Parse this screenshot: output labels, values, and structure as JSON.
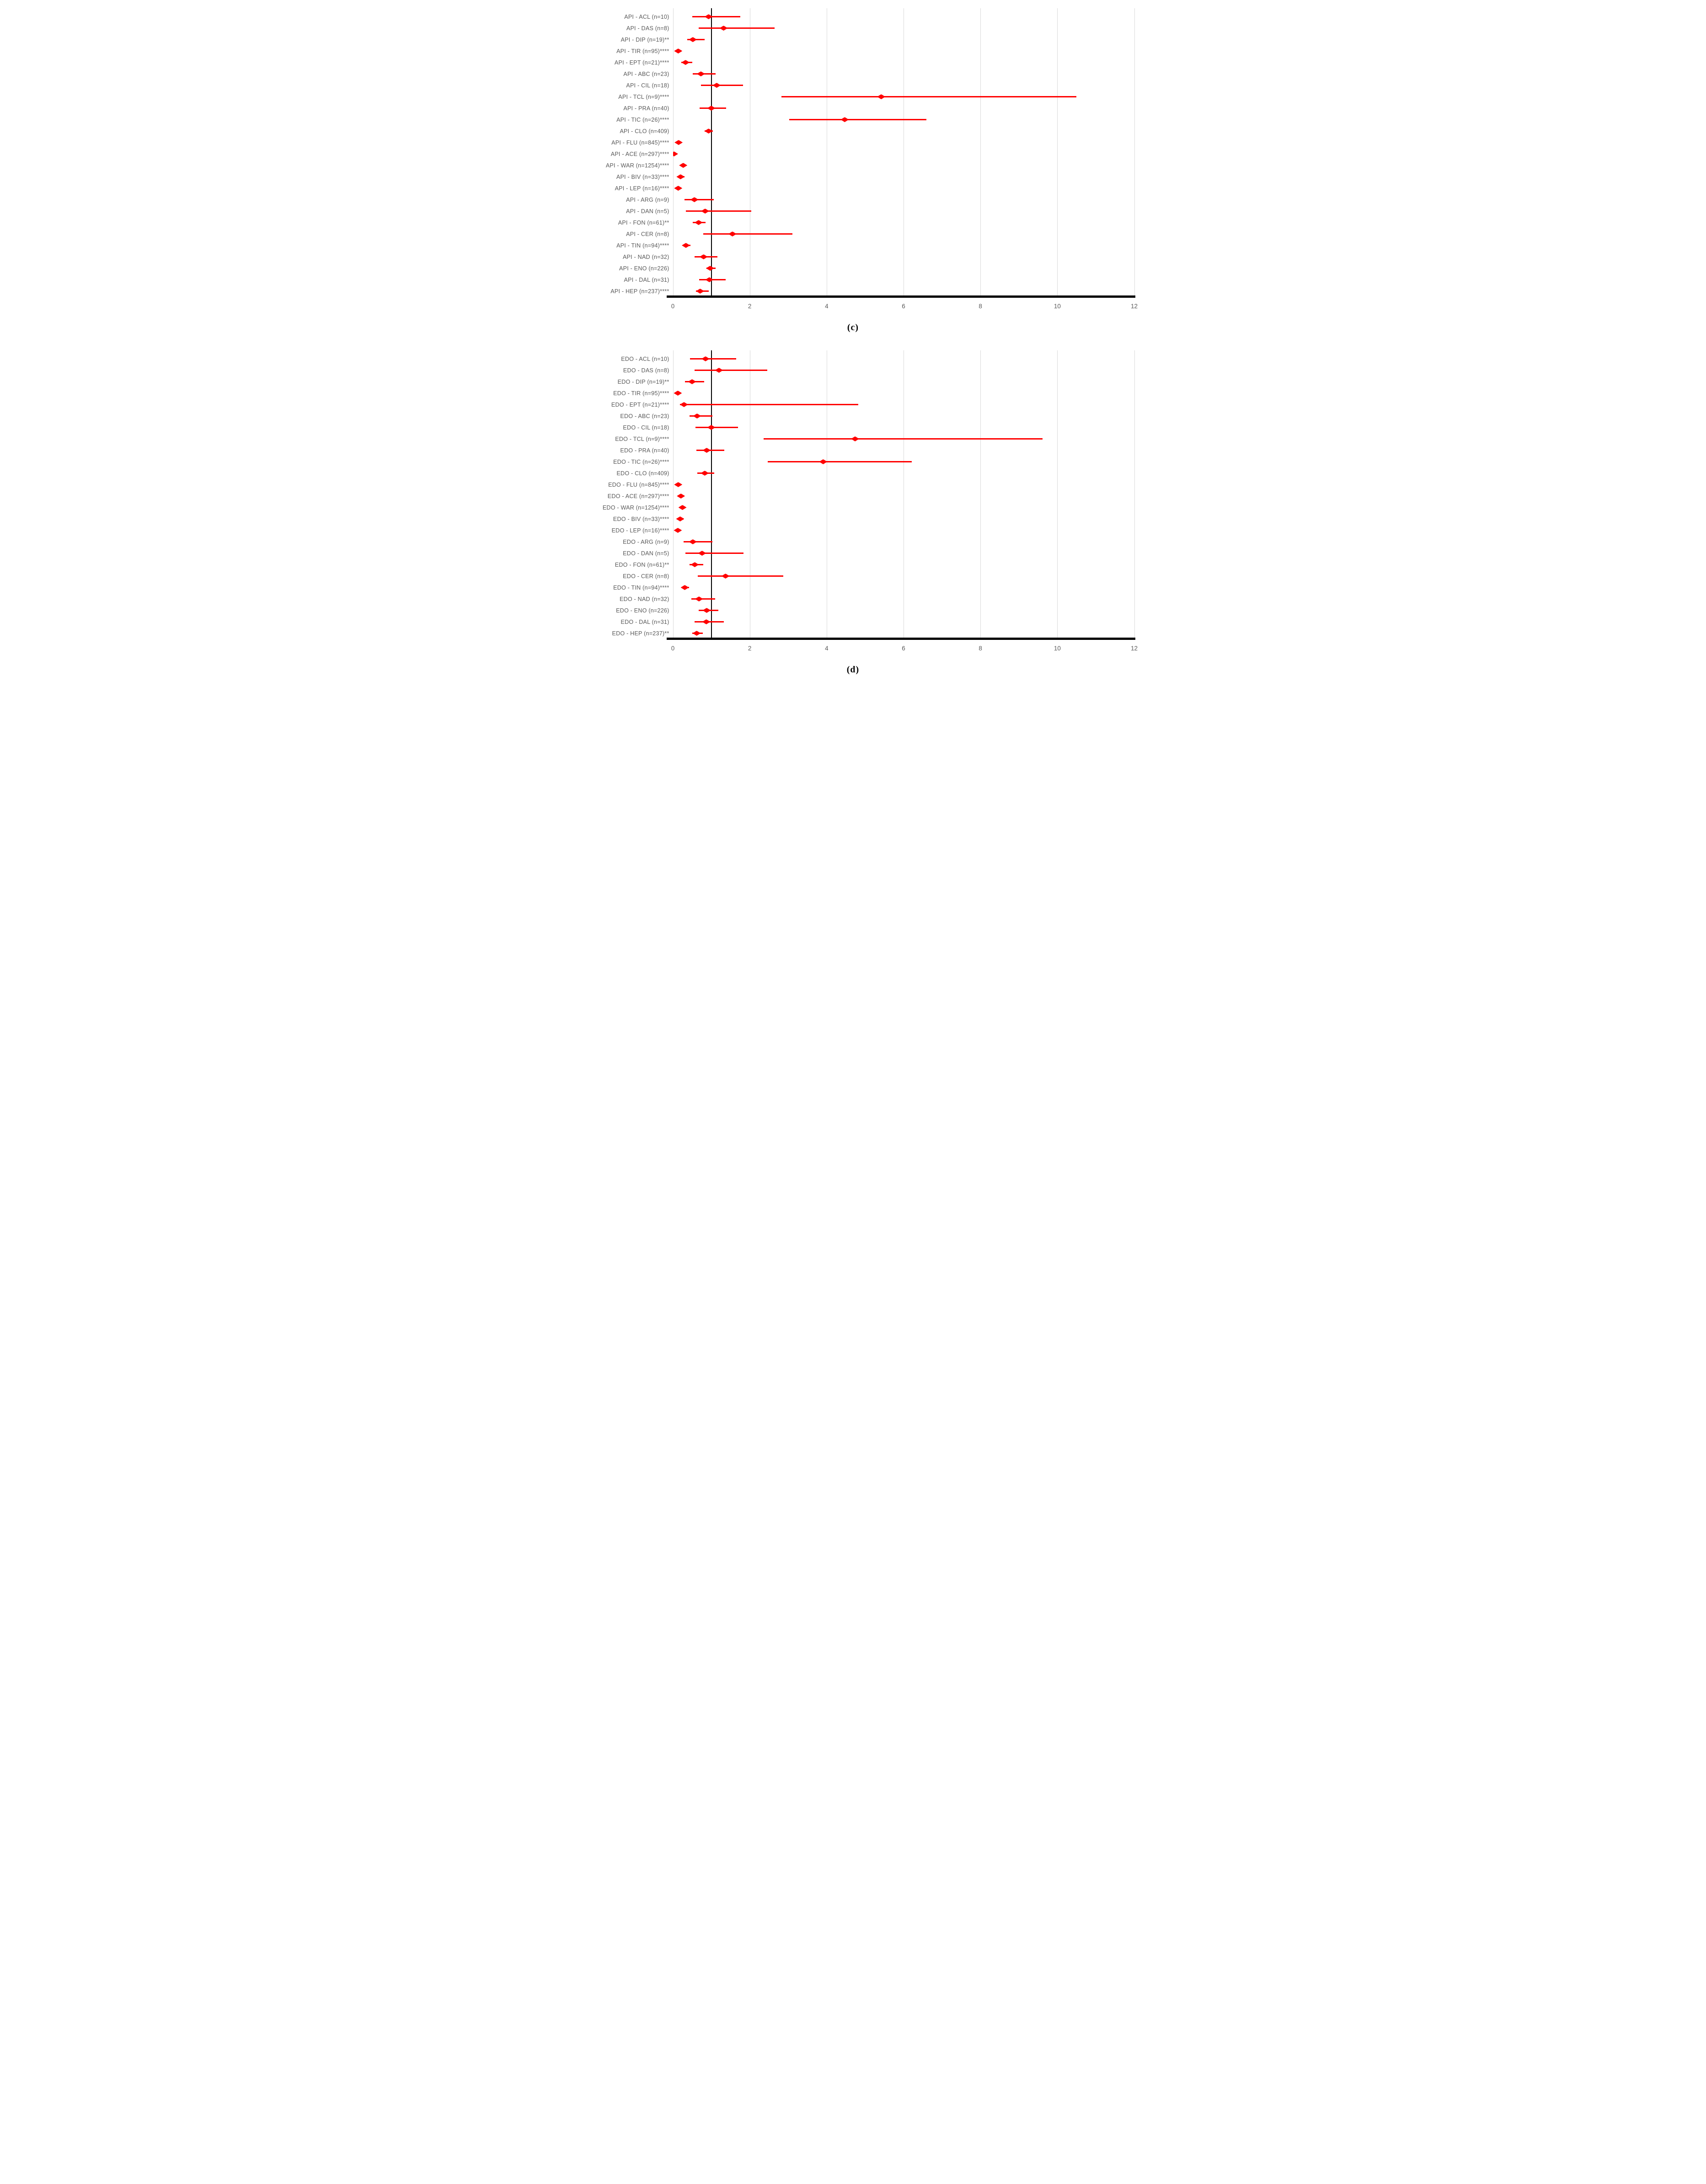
{
  "styles": {
    "marker_color": "#FF0000",
    "text_color": "#595959",
    "gridline_color": "#D9D9D9",
    "reference_line_color": "#000000",
    "axis_color": "#000000",
    "background": "#FFFFFF"
  },
  "chart_data": [
    {
      "id": "c",
      "type": "scatter",
      "variant": "forest-plot",
      "caption": "(c)",
      "legend": "none",
      "x_axis": {
        "min": 0,
        "max": 12,
        "ticks": [
          0,
          2,
          4,
          6,
          8,
          10,
          12
        ],
        "gridlines": true
      },
      "reference_line_x": 1,
      "rows": [
        {
          "label": "API - ACL (n=10)",
          "value": 0.93,
          "lo": 0.5,
          "hi": 1.75
        },
        {
          "label": "API - DAS (n=8)",
          "value": 1.32,
          "lo": 0.67,
          "hi": 2.65
        },
        {
          "label": "API - DIP (n=19)**",
          "value": 0.52,
          "lo": 0.37,
          "hi": 0.83
        },
        {
          "label": "API - TIR (n=95)****",
          "value": 0.14,
          "lo": 0.09,
          "hi": 0.2
        },
        {
          "label": "API - EPT (n=21)****",
          "value": 0.33,
          "lo": 0.22,
          "hi": 0.5
        },
        {
          "label": "API - ABC (n=23)",
          "value": 0.73,
          "lo": 0.52,
          "hi": 1.11
        },
        {
          "label": "API - CIL (n=18)",
          "value": 1.14,
          "lo": 0.73,
          "hi": 1.83
        },
        {
          "label": "API - TCL (n=9)****",
          "value": 5.42,
          "lo": 2.82,
          "hi": 10.5
        },
        {
          "label": "API - PRA (n=40)",
          "value": 1.0,
          "lo": 0.7,
          "hi": 1.39
        },
        {
          "label": "API - TIC (n=26)****",
          "value": 4.47,
          "lo": 3.03,
          "hi": 6.6
        },
        {
          "label": "API - CLO (n=409)",
          "value": 0.93,
          "lo": 0.83,
          "hi": 1.04
        },
        {
          "label": "API - FLU (n=845)****",
          "value": 0.15,
          "lo": 0.1,
          "hi": 0.21
        },
        {
          "label": "API - ACE (n=297)****",
          "value": 0.03,
          "lo": 0.02,
          "hi": 0.1
        },
        {
          "label": "API - WAR (n=1254)****",
          "value": 0.27,
          "lo": 0.21,
          "hi": 0.35
        },
        {
          "label": "API - BIV (n=33)****",
          "value": 0.2,
          "lo": 0.13,
          "hi": 0.3
        },
        {
          "label": "API - LEP (n=16)****",
          "value": 0.14,
          "lo": 0.08,
          "hi": 0.22
        },
        {
          "label": "API - ARG (n=9)",
          "value": 0.56,
          "lo": 0.3,
          "hi": 1.07
        },
        {
          "label": "API - DAN (n=5)",
          "value": 0.84,
          "lo": 0.34,
          "hi": 2.04
        },
        {
          "label": "API - FON (n=61)**",
          "value": 0.67,
          "lo": 0.52,
          "hi": 0.85
        },
        {
          "label": "API - CER (n=8)",
          "value": 1.55,
          "lo": 0.79,
          "hi": 3.11
        },
        {
          "label": "API - TIN (n=94)****",
          "value": 0.34,
          "lo": 0.26,
          "hi": 0.46
        },
        {
          "label": "API - NAD (n=32)",
          "value": 0.8,
          "lo": 0.56,
          "hi": 1.16
        },
        {
          "label": "API - ENO (n=226)",
          "value": 0.97,
          "lo": 0.87,
          "hi": 1.11
        },
        {
          "label": "API - DAL (n=31)",
          "value": 0.95,
          "lo": 0.68,
          "hi": 1.37
        },
        {
          "label": "API - HEP (n=237)****",
          "value": 0.71,
          "lo": 0.6,
          "hi": 0.93
        }
      ]
    },
    {
      "id": "d",
      "type": "scatter",
      "variant": "forest-plot",
      "caption": "(d)",
      "legend": "none",
      "x_axis": {
        "min": 0,
        "max": 12,
        "ticks": [
          0,
          2,
          4,
          6,
          8,
          10,
          12
        ],
        "gridlines": true
      },
      "reference_line_x": 1,
      "rows": [
        {
          "label": "EDO - ACL (n=10)",
          "value": 0.85,
          "lo": 0.45,
          "hi": 1.65
        },
        {
          "label": "EDO - DAS (n=8)",
          "value": 1.2,
          "lo": 0.57,
          "hi": 2.46
        },
        {
          "label": "EDO - DIP (n=19)**",
          "value": 0.5,
          "lo": 0.31,
          "hi": 0.82
        },
        {
          "label": "EDO - TIR (n=95)****",
          "value": 0.13,
          "lo": 0.08,
          "hi": 0.2
        },
        {
          "label": "EDO - EPT (n=21)****",
          "value": 0.29,
          "lo": 0.18,
          "hi": 4.82
        },
        {
          "label": "EDO - ABC (n=23)",
          "value": 0.63,
          "lo": 0.43,
          "hi": 1.03
        },
        {
          "label": "EDO - CIL (n=18)",
          "value": 1.0,
          "lo": 0.59,
          "hi": 1.7
        },
        {
          "label": "EDO - TCL (n=9)****",
          "value": 4.74,
          "lo": 2.36,
          "hi": 9.62
        },
        {
          "label": "EDO - PRA (n=40)",
          "value": 0.88,
          "lo": 0.61,
          "hi": 1.34
        },
        {
          "label": "EDO - TIC (n=26)****",
          "value": 3.91,
          "lo": 2.47,
          "hi": 6.21
        },
        {
          "label": "EDO - CLO (n=409)",
          "value": 0.83,
          "lo": 0.64,
          "hi": 1.08
        },
        {
          "label": "EDO - FLU (n=845)****",
          "value": 0.14,
          "lo": 0.09,
          "hi": 0.2
        },
        {
          "label": "EDO - ACE (n=297)****",
          "value": 0.21,
          "lo": 0.15,
          "hi": 0.29
        },
        {
          "label": "EDO - WAR (n=1254)****",
          "value": 0.25,
          "lo": 0.2,
          "hi": 0.32
        },
        {
          "label": "EDO - BIV (n=33)****",
          "value": 0.19,
          "lo": 0.12,
          "hi": 0.28
        },
        {
          "label": "EDO - LEP (n=16)****",
          "value": 0.13,
          "lo": 0.07,
          "hi": 0.21
        },
        {
          "label": "EDO - ARG (n=9)",
          "value": 0.52,
          "lo": 0.28,
          "hi": 1.03
        },
        {
          "label": "EDO - DAN (n=5)",
          "value": 0.76,
          "lo": 0.33,
          "hi": 1.84
        },
        {
          "label": "EDO - FON (n=61)**",
          "value": 0.57,
          "lo": 0.43,
          "hi": 0.79
        },
        {
          "label": "EDO - CER (n=8)",
          "value": 1.37,
          "lo": 0.65,
          "hi": 2.87
        },
        {
          "label": "EDO - TIN (n=94)****",
          "value": 0.31,
          "lo": 0.24,
          "hi": 0.42
        },
        {
          "label": "EDO - NAD (n=32)",
          "value": 0.68,
          "lo": 0.48,
          "hi": 1.1
        },
        {
          "label": "EDO - ENO (n=226)",
          "value": 0.88,
          "lo": 0.67,
          "hi": 1.18
        },
        {
          "label": "EDO - DAL (n=31)",
          "value": 0.87,
          "lo": 0.56,
          "hi": 1.33
        },
        {
          "label": "EDO - HEP (n=237)**",
          "value": 0.62,
          "lo": 0.5,
          "hi": 0.78
        }
      ]
    }
  ]
}
